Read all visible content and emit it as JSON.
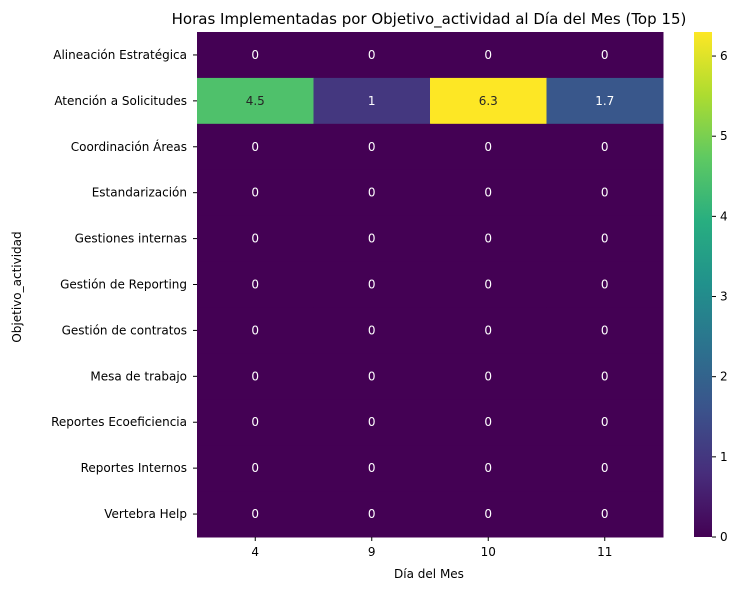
{
  "chart_data": {
    "type": "heatmap",
    "title": "Horas Implementadas por Objetivo_actividad al Día del Mes (Top 15)",
    "xlabel": "Día del Mes",
    "ylabel": "Objetivo_actividad",
    "x_categories": [
      "4",
      "9",
      "10",
      "11"
    ],
    "y_categories": [
      "Alineación Estratégica",
      "Atención a Solicitudes",
      "Coordinación Áreas",
      "Estandarización",
      "Gestiones internas",
      "Gestión de Reporting",
      "Gestión de contratos",
      "Mesa de trabajo",
      "Reportes Ecoeficiencia",
      "Reportes Internos",
      "Vertebra Help"
    ],
    "values": [
      [
        0,
        0,
        0,
        0
      ],
      [
        4.5,
        1,
        6.3,
        1.7
      ],
      [
        0,
        0,
        0,
        0
      ],
      [
        0,
        0,
        0,
        0
      ],
      [
        0,
        0,
        0,
        0
      ],
      [
        0,
        0,
        0,
        0
      ],
      [
        0,
        0,
        0,
        0
      ],
      [
        0,
        0,
        0,
        0
      ],
      [
        0,
        0,
        0,
        0
      ],
      [
        0,
        0,
        0,
        0
      ],
      [
        0,
        0,
        0,
        0
      ]
    ],
    "colorscale": "viridis",
    "colorbar": {
      "range": [
        0,
        6.3
      ],
      "ticks": [
        "0",
        "1",
        "2",
        "3",
        "4",
        "5",
        "6"
      ]
    }
  }
}
